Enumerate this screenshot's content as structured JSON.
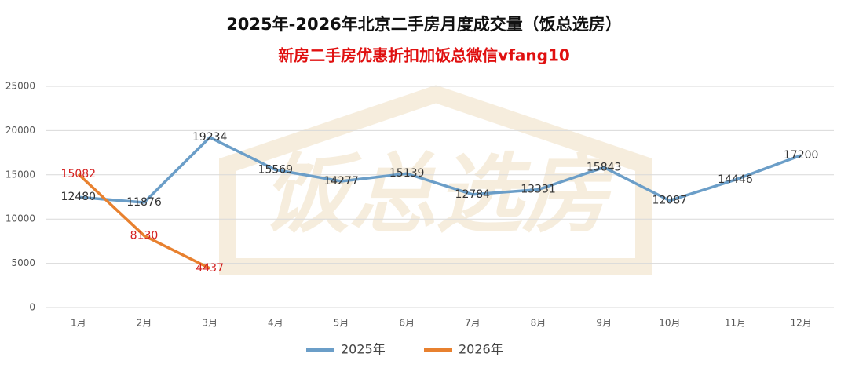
{
  "chart_data": {
    "type": "line",
    "title": "2025年-2026年北京二手房月度成交量（饭总选房）",
    "subtitle": "新房二手房优惠折扣加饭总微信vfang10",
    "watermark": "饭总选房",
    "categories": [
      "1月",
      "2月",
      "3月",
      "4月",
      "5月",
      "6月",
      "7月",
      "8月",
      "9月",
      "10月",
      "11月",
      "12月"
    ],
    "series": [
      {
        "name": "2025年",
        "color": "#6b9ec8",
        "label_color": "#333333",
        "values": [
          12480,
          11876,
          19234,
          15569,
          14277,
          15139,
          12784,
          13331,
          15843,
          12087,
          14446,
          17200
        ]
      },
      {
        "name": "2026年",
        "color": "#e8812f",
        "label_color": "#d42020",
        "values": [
          15082,
          8130,
          4437,
          null,
          null,
          null,
          null,
          null,
          null,
          null,
          null,
          null
        ]
      }
    ],
    "ylim": [
      0,
      25000
    ],
    "yticks": [
      0,
      5000,
      10000,
      15000,
      20000,
      25000
    ],
    "grid": true,
    "legend": "bottom"
  }
}
